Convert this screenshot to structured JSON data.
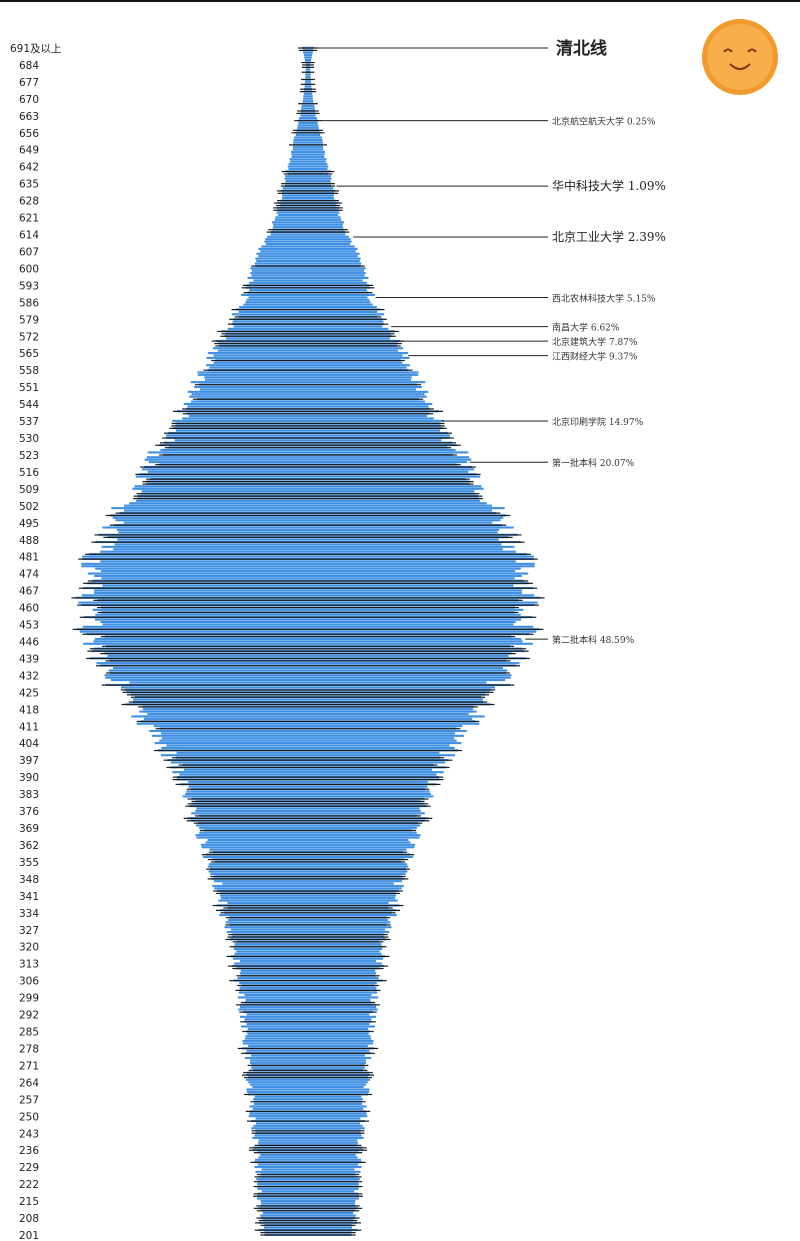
{
  "chart_data": {
    "type": "bar",
    "orientation": "horizontal-centered",
    "title": "",
    "xlabel": "",
    "ylabel": "",
    "bar_color": "#3f8fe3",
    "grid": false,
    "y_tick_labels": [
      "691及以上",
      "684",
      "677",
      "670",
      "663",
      "656",
      "649",
      "642",
      "635",
      "628",
      "621",
      "614",
      "607",
      "600",
      "593",
      "586",
      "579",
      "572",
      "565",
      "558",
      "551",
      "544",
      "537",
      "530",
      "523",
      "516",
      "509",
      "502",
      "495",
      "488",
      "481",
      "474",
      "467",
      "460",
      "453",
      "446",
      "439",
      "432",
      "425",
      "418",
      "411",
      "404",
      "397",
      "390",
      "383",
      "376",
      "369",
      "362",
      "355",
      "348",
      "341",
      "334",
      "327",
      "320",
      "313",
      "306",
      "299",
      "292",
      "285",
      "278",
      "271",
      "264",
      "257",
      "250",
      "243",
      "236",
      "229",
      "222",
      "215",
      "208",
      "201"
    ],
    "scores": [
      691,
      684,
      677,
      670,
      663,
      656,
      649,
      642,
      635,
      628,
      621,
      614,
      607,
      600,
      593,
      586,
      579,
      572,
      565,
      558,
      551,
      544,
      537,
      530,
      523,
      516,
      509,
      502,
      495,
      488,
      481,
      474,
      467,
      460,
      453,
      446,
      439,
      432,
      425,
      418,
      411,
      404,
      397,
      390,
      383,
      376,
      369,
      362,
      355,
      348,
      341,
      334,
      327,
      320,
      313,
      306,
      299,
      292,
      285,
      278,
      271,
      264,
      257,
      250,
      243,
      236,
      229,
      222,
      215,
      208,
      201
    ],
    "relative_counts": [
      6,
      2,
      3,
      5,
      8,
      12,
      16,
      20,
      24,
      28,
      33,
      40,
      48,
      54,
      60,
      65,
      75,
      85,
      95,
      103,
      113,
      120,
      130,
      142,
      152,
      165,
      175,
      185,
      195,
      205,
      212,
      218,
      222,
      222,
      220,
      212,
      205,
      195,
      185,
      175,
      160,
      145,
      135,
      128,
      122,
      115,
      110,
      105,
      98,
      92,
      88,
      84,
      80,
      75,
      72,
      70,
      67,
      65,
      63,
      62,
      60,
      58,
      57,
      56,
      53,
      52,
      50,
      49,
      48,
      47,
      46
    ],
    "annotations": [
      {
        "score": 691,
        "label": "清北线",
        "style": "top"
      },
      {
        "score": 661,
        "label": "北京航空航天大学 0.25%",
        "style": "small"
      },
      {
        "score": 634,
        "label": "华中科技大学 1.09%",
        "style": "big"
      },
      {
        "score": 613,
        "label": "北京工业大学 2.39%",
        "style": "big"
      },
      {
        "score": 588,
        "label": "西北农林科技大学 5.15%",
        "style": "small"
      },
      {
        "score": 576,
        "label": "南昌大学 6.62%",
        "style": "small"
      },
      {
        "score": 570,
        "label": "北京建筑大学 7.87%",
        "style": "small"
      },
      {
        "score": 564,
        "label": "江西财经大学 9.37%",
        "style": "small"
      },
      {
        "score": 537,
        "label": "北京印刷学院 14.97%",
        "style": "small"
      },
      {
        "score": 520,
        "label": "第一批本科 20.07%",
        "style": "small"
      },
      {
        "score": 447,
        "label": "第二批本科 48.59%",
        "style": "small"
      }
    ]
  },
  "decoration": {
    "icon": "smiling-sun-emoji",
    "color": "#f7a23a"
  }
}
